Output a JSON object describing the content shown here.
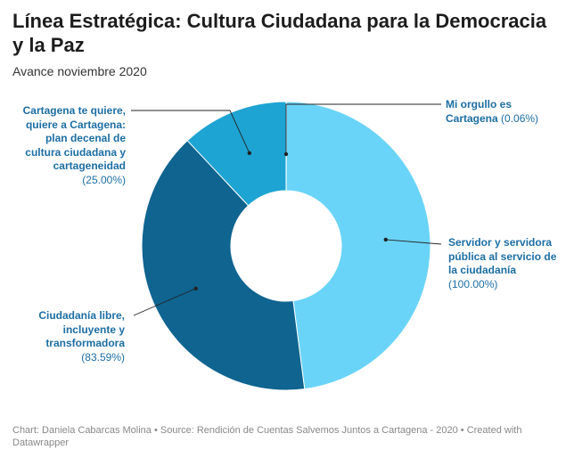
{
  "title": "Línea Estratégica: Cultura Ciudadana para la Democracia y la Paz",
  "subtitle": "Avance noviembre 2020",
  "footer": "Chart: Daniela Cabarcas Molina • Source: Rendición de Cuentas Salvemos Juntos a Cartagena - 2020 • Created with Datawrapper",
  "label_color": "#1b6ea3",
  "chart_data": {
    "type": "pie",
    "variant": "donut",
    "start": "12 o'clock, clockwise",
    "slices": [
      {
        "label": "Mi orgullo es Cartagena",
        "value": 0.06,
        "value_text": "(0.06%)",
        "color": "#1b6ea3"
      },
      {
        "label": "Servidor y servidora pública al servicio de la ciudadanía",
        "value": 100.0,
        "value_text": "(100.00%)",
        "color": "#6ad4f8"
      },
      {
        "label": "Ciudadanía libre, incluyente y transformadora",
        "value": 83.59,
        "value_text": "(83.59%)",
        "color": "#0f6490"
      },
      {
        "label": "Cartagena te quiere, quiere a Cartagena: plan decenal de cultura ciudadana y cartageneidad",
        "value": 25.0,
        "value_text": "(25.00%)",
        "color": "#1ea4d2"
      }
    ]
  }
}
